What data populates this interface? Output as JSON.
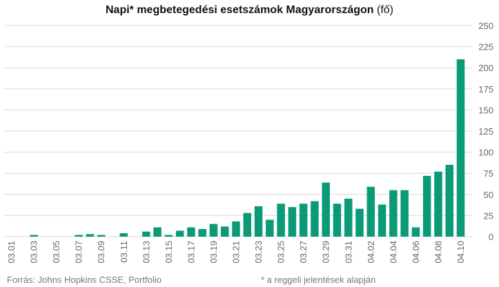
{
  "chart_data": {
    "type": "bar",
    "title_bold": "Napi* megbetegedési esetszámok Magyarországon",
    "title_unit": " (fő)",
    "categories": [
      "03.01",
      "03.02",
      "03.03",
      "03.04",
      "03.05",
      "03.06",
      "03.07",
      "03.08",
      "03.09",
      "03.10",
      "03.11",
      "03.12",
      "03.13",
      "03.14",
      "03.15",
      "03.16",
      "03.17",
      "03.18",
      "03.19",
      "03.20",
      "03.21",
      "03.22",
      "03.23",
      "03.24",
      "03.25",
      "03.26",
      "03.27",
      "03.28",
      "03.29",
      "03.30",
      "03.31",
      "04.01",
      "04.02",
      "04.03",
      "04.04",
      "04.05",
      "04.06",
      "04.07",
      "04.08",
      "04.09",
      "04.10"
    ],
    "tick_labels": [
      "03.01",
      "03.03",
      "03.05",
      "03.07",
      "03.09",
      "03.11",
      "03.13",
      "03.15",
      "03.17",
      "03.19",
      "03.21",
      "03.23",
      "03.25",
      "03.27",
      "03.29",
      "03.31",
      "04.02",
      "04.04",
      "04.06",
      "04.08",
      "04.10"
    ],
    "values": [
      0,
      0,
      2,
      0,
      0,
      0,
      2,
      3,
      2,
      0,
      4,
      0,
      6,
      11,
      2,
      7,
      11,
      9,
      15,
      12,
      18,
      28,
      36,
      20,
      39,
      35,
      39,
      42,
      64,
      39,
      45,
      33,
      59,
      38,
      55,
      55,
      11,
      72,
      77,
      85,
      210
    ],
    "ylim": [
      0,
      250
    ],
    "yticks": [
      0,
      25,
      50,
      75,
      100,
      125,
      150,
      175,
      200,
      225,
      250
    ],
    "grid": true,
    "bar_color": "#0a9a78",
    "grid_color": "#d9d9d9"
  },
  "footer": {
    "source": "Forrás: Johns Hopkins CSSE, Portfolio",
    "note": "* a reggeli jelentések alapján"
  }
}
